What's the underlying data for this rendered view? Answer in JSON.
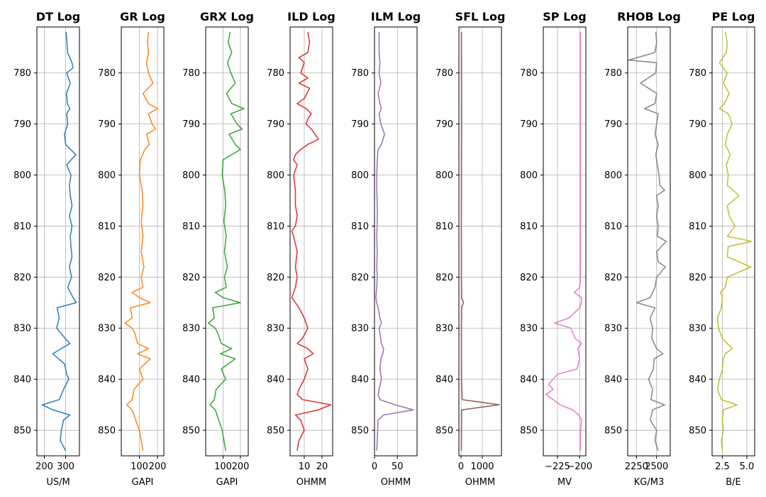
{
  "chart_data": {
    "type": "line",
    "depth_range": [
      771.0,
      855.0
    ],
    "depth_ticks": [
      780,
      790,
      800,
      810,
      820,
      830,
      840,
      850
    ],
    "grid": true,
    "tracks": [
      {
        "title": "DT Log",
        "xlabel": "US/M",
        "color": "#1f77b4",
        "xlim": [
          165,
          365
        ],
        "xticks": [
          200,
          300
        ],
        "xtick_labels": [
          "200",
          "300"
        ],
        "series": {
          "depth": [
            772,
            774,
            776,
            778,
            779,
            780,
            782,
            784,
            786,
            787,
            788,
            790,
            792,
            794,
            796,
            798,
            800,
            802,
            804,
            806,
            808,
            810,
            812,
            814,
            816,
            818,
            820,
            822,
            824,
            825,
            826,
            828,
            830,
            832,
            833,
            835,
            837,
            839,
            840,
            842,
            844,
            845,
            846,
            847,
            848,
            850,
            852,
            854
          ],
          "value": [
            302,
            306,
            309,
            330,
            335,
            305,
            322,
            304,
            308,
            320,
            305,
            310,
            295,
            300,
            348,
            305,
            325,
            318,
            322,
            330,
            318,
            330,
            322,
            325,
            330,
            318,
            328,
            310,
            335,
            350,
            260,
            270,
            258,
            298,
            320,
            240,
            295,
            305,
            315,
            290,
            270,
            190,
            240,
            320,
            290,
            280,
            275,
            300
          ]
        }
      },
      {
        "title": "GR Log",
        "xlabel": "GAPI",
        "color": "#ff7f0e",
        "xlim": [
          0,
          235
        ],
        "xticks": [
          100,
          200
        ],
        "xtick_labels": [
          "100",
          "200"
        ],
        "series": {
          "depth": [
            772,
            774,
            776,
            778,
            780,
            782,
            784,
            786,
            787,
            788,
            790,
            791,
            792,
            794,
            795,
            797,
            800,
            803,
            806,
            809,
            812,
            815,
            818,
            820,
            822,
            823,
            824,
            825,
            826,
            828,
            829,
            830,
            831,
            833,
            834,
            835,
            836,
            838,
            840,
            842,
            844,
            845,
            846,
            848,
            850,
            852,
            854
          ],
          "value": [
            150,
            145,
            150,
            140,
            150,
            175,
            120,
            150,
            200,
            150,
            170,
            190,
            140,
            155,
            130,
            105,
            100,
            115,
            120,
            110,
            120,
            110,
            125,
            110,
            120,
            60,
            100,
            160,
            50,
            60,
            20,
            60,
            75,
            90,
            150,
            90,
            160,
            100,
            120,
            70,
            60,
            30,
            60,
            80,
            100,
            110,
            120
          ]
        }
      },
      {
        "title": "GRX Log",
        "xlabel": "GAPI",
        "color": "#2ca02c",
        "xlim": [
          0,
          245
        ],
        "xticks": [
          100,
          200
        ],
        "xtick_labels": [
          "100",
          "200"
        ],
        "series": {
          "depth": [
            772,
            774,
            776,
            778,
            780,
            782,
            784,
            786,
            787,
            788,
            790,
            791,
            792,
            794,
            795,
            797,
            800,
            803,
            806,
            809,
            812,
            815,
            818,
            820,
            822,
            823,
            824,
            825,
            826,
            828,
            829,
            830,
            831,
            833,
            834,
            835,
            836,
            838,
            840,
            842,
            844,
            845,
            846,
            848,
            850,
            852,
            854
          ],
          "value": [
            140,
            130,
            150,
            125,
            145,
            170,
            120,
            150,
            220,
            145,
            180,
            210,
            135,
            170,
            200,
            100,
            95,
            110,
            115,
            105,
            118,
            108,
            125,
            108,
            118,
            55,
            100,
            200,
            40,
            50,
            15,
            55,
            70,
            90,
            150,
            85,
            170,
            90,
            115,
            60,
            50,
            25,
            55,
            75,
            95,
            105,
            115
          ]
        }
      },
      {
        "title": "ILD Log",
        "xlabel": "OHMM",
        "color": "#d62728",
        "xlim": [
          2,
          26
        ],
        "xticks": [
          10,
          20
        ],
        "xtick_labels": [
          "10",
          "20"
        ],
        "series": {
          "depth": [
            772,
            774,
            776,
            777,
            778,
            780,
            781,
            782,
            783,
            785,
            786,
            787,
            788,
            789,
            790,
            791,
            792,
            793,
            794,
            795,
            796,
            797,
            798,
            800,
            803,
            806,
            808,
            810,
            811,
            812,
            815,
            818,
            820,
            822,
            823,
            824,
            825,
            826,
            828,
            830,
            832,
            833,
            834,
            835,
            836,
            838,
            840,
            842,
            843,
            844,
            845,
            846,
            847,
            848,
            850,
            852,
            854
          ],
          "value": [
            12,
            13,
            12,
            7,
            10,
            8,
            12,
            7,
            13,
            10,
            6,
            11,
            14,
            12,
            11,
            14,
            16,
            18,
            12,
            8,
            5,
            4,
            6,
            4,
            5,
            5,
            6,
            5,
            3,
            4,
            6,
            5,
            6,
            5,
            4,
            3,
            5,
            7,
            10,
            12,
            9,
            6,
            12,
            15,
            10,
            12,
            10,
            7,
            6,
            9,
            25,
            18,
            5,
            8,
            10,
            7,
            6
          ]
        }
      },
      {
        "title": "ILM Log",
        "xlabel": "OHMM",
        "color": "#9467bd",
        "xlim": [
          0,
          93
        ],
        "xticks": [
          0,
          50
        ],
        "xtick_labels": [
          "0",
          "50"
        ],
        "series": {
          "depth": [
            772,
            774,
            776,
            778,
            780,
            782,
            784,
            786,
            787,
            788,
            790,
            791,
            792,
            794,
            795,
            797,
            800,
            803,
            806,
            809,
            812,
            815,
            818,
            820,
            822,
            823,
            824,
            825,
            826,
            828,
            829,
            830,
            831,
            833,
            834,
            835,
            836,
            838,
            840,
            842,
            843,
            844,
            845,
            846,
            847,
            848,
            850,
            852,
            854
          ],
          "value": [
            10,
            10,
            10,
            12,
            10,
            14,
            8,
            12,
            15,
            10,
            14,
            18,
            22,
            15,
            8,
            6,
            5,
            5,
            6,
            6,
            5,
            6,
            5,
            6,
            5,
            4,
            3,
            5,
            8,
            12,
            15,
            10,
            12,
            15,
            20,
            18,
            14,
            12,
            15,
            10,
            8,
            12,
            45,
            85,
            20,
            8,
            7,
            6,
            5
          ]
        }
      },
      {
        "title": "SFL Log",
        "xlabel": "OHMM",
        "color": "#8c564b",
        "xlim": [
          -100,
          1900
        ],
        "xticks": [
          0,
          1000
        ],
        "xtick_labels": [
          "0",
          "1000"
        ],
        "series": {
          "depth": [
            772,
            780,
            790,
            800,
            810,
            820,
            824,
            825,
            826,
            830,
            840,
            844,
            845,
            846,
            850,
            854
          ],
          "value": [
            20,
            22,
            25,
            20,
            18,
            20,
            30,
            120,
            25,
            20,
            22,
            60,
            1800,
            30,
            20,
            18
          ]
        }
      },
      {
        "title": "SP Log",
        "xlabel": "MV",
        "color": "#e377c2",
        "xlim": [
          -241,
          -193
        ],
        "xticks": [
          -225,
          -200
        ],
        "xtick_labels": [
          "−225",
          "−200"
        ],
        "series": {
          "depth": [
            772,
            780,
            790,
            800,
            810,
            820,
            822,
            823,
            824,
            825,
            826,
            828,
            829,
            830,
            832,
            833,
            834,
            836,
            838,
            839,
            840,
            841,
            842,
            843,
            845,
            846,
            847,
            848,
            850,
            852,
            854
          ],
          "value": [
            -199,
            -199,
            -199,
            -199,
            -199,
            -199,
            -200,
            -206,
            -198,
            -198,
            -200,
            -212,
            -228,
            -210,
            -205,
            -198,
            -202,
            -200,
            -203,
            -225,
            -230,
            -235,
            -230,
            -238,
            -222,
            -208,
            -201,
            -198,
            -199,
            -199,
            -199
          ]
        }
      },
      {
        "title": "RHOB Log",
        "xlabel": "KG/M3",
        "color": "#7f7f7f",
        "xlim": [
          2140,
          2670
        ],
        "xticks": [
          2250,
          2500
        ],
        "xtick_labels": [
          "2250",
          "2500"
        ],
        "series": {
          "depth": [
            772,
            774,
            776,
            777.5,
            778,
            780,
            782,
            784,
            786,
            787,
            788,
            790,
            792,
            794,
            796,
            798,
            800,
            802,
            803,
            804,
            806,
            808,
            810,
            812,
            813,
            815,
            817,
            818,
            820,
            822,
            824,
            825,
            826,
            828,
            830,
            832,
            834,
            835,
            836,
            838,
            840,
            842,
            844,
            845,
            846,
            848,
            850,
            852,
            854
          ],
          "value": [
            2490,
            2500,
            2480,
            2150,
            2500,
            2490,
            2300,
            2500,
            2480,
            2350,
            2520,
            2500,
            2480,
            2520,
            2490,
            2510,
            2530,
            2540,
            2600,
            2500,
            2520,
            2500,
            2520,
            2510,
            2620,
            2500,
            2520,
            2610,
            2500,
            2480,
            2420,
            2250,
            2480,
            2420,
            2450,
            2440,
            2500,
            2580,
            2470,
            2460,
            2400,
            2450,
            2430,
            2600,
            2450,
            2420,
            2500,
            2480,
            2520
          ]
        }
      },
      {
        "title": "PE Log",
        "xlabel": "B/E",
        "color": "#bcbd22",
        "xlim": [
          1.45,
          5.8
        ],
        "xticks": [
          2.5,
          5.0
        ],
        "xtick_labels": [
          "2.5",
          "5.0"
        ],
        "series": {
          "depth": [
            772,
            774,
            776,
            778,
            780,
            782,
            784,
            786,
            787,
            788,
            790,
            792,
            794,
            796,
            798,
            800,
            802,
            804,
            806,
            808,
            810,
            812,
            813,
            814,
            816,
            818,
            820,
            822,
            823,
            824,
            826,
            828,
            830,
            832,
            834,
            835,
            836,
            838,
            840,
            842,
            844,
            845,
            846,
            848,
            850,
            852,
            854
          ],
          "value": [
            2.8,
            3.0,
            2.9,
            2.2,
            3.0,
            2.6,
            3.2,
            2.7,
            2.2,
            3.1,
            3.5,
            3.0,
            2.8,
            3.3,
            2.9,
            3.1,
            3.0,
            4.2,
            3.0,
            3.2,
            3.8,
            3.0,
            5.5,
            3.1,
            3.0,
            5.4,
            3.0,
            2.8,
            2.3,
            2.5,
            2.4,
            2.0,
            2.1,
            2.5,
            3.5,
            2.8,
            2.6,
            2.5,
            2.2,
            2.0,
            2.4,
            4.0,
            2.6,
            2.5,
            2.6,
            2.4,
            2.5
          ]
        }
      }
    ]
  }
}
